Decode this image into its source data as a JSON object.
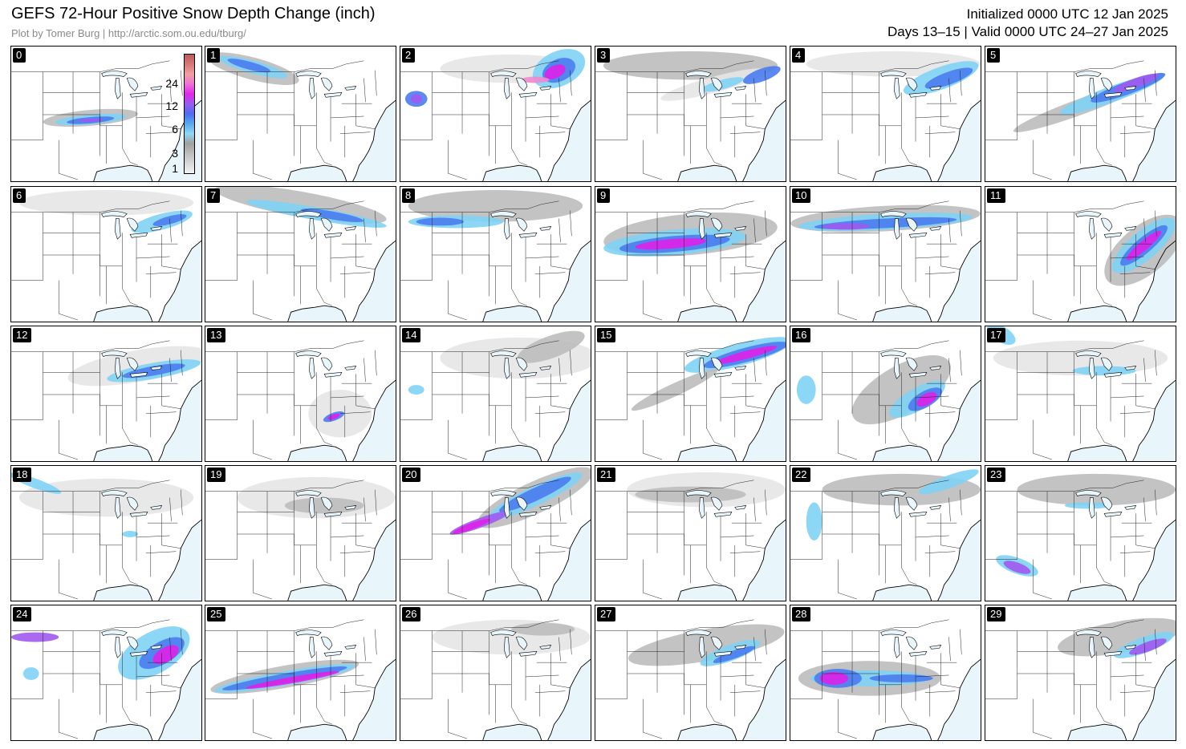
{
  "header": {
    "title": "GEFS 72-Hour Positive Snow Depth Change (inch)",
    "credit": "Plot by Tomer Burg | http://arctic.som.ou.edu/tburg/",
    "initialized": "Initialized 0000 UTC 12 Jan 2025",
    "valid": "Days 13–15 | Valid 0000 UTC 24–27 Jan 2025"
  },
  "legend": {
    "ticks": [
      "24",
      "12",
      "6",
      "3",
      "1"
    ],
    "colors": [
      "#f4f4f4",
      "#d8d8d8",
      "#bdbdbd",
      "#a0a0a0",
      "#8fd8f5",
      "#5aa8ee",
      "#4a6ef0",
      "#9a5cf0",
      "#e028e8",
      "#f070d8",
      "#f0a0a0",
      "#d87878",
      "#b85c5c"
    ]
  },
  "colors": {
    "ocean": "#e8f6fc",
    "land": "#ffffff",
    "border": "#000000",
    "lightgray": "#e6e6e6",
    "midgray": "#bcbcbc",
    "darkgray": "#9a9a9a",
    "lightblue": "#7fd2f5",
    "blue": "#4a7cf0",
    "purple": "#a05af0",
    "magenta": "#e020e8",
    "pink": "#f08ad0"
  },
  "members": [
    {
      "label": "0"
    },
    {
      "label": "1"
    },
    {
      "label": "2"
    },
    {
      "label": "3"
    },
    {
      "label": "4"
    },
    {
      "label": "5"
    },
    {
      "label": "6"
    },
    {
      "label": "7"
    },
    {
      "label": "8"
    },
    {
      "label": "9"
    },
    {
      "label": "10"
    },
    {
      "label": "11"
    },
    {
      "label": "12"
    },
    {
      "label": "13"
    },
    {
      "label": "14"
    },
    {
      "label": "15"
    },
    {
      "label": "16"
    },
    {
      "label": "17"
    },
    {
      "label": "18"
    },
    {
      "label": "19"
    },
    {
      "label": "20"
    },
    {
      "label": "21"
    },
    {
      "label": "22"
    },
    {
      "label": "23"
    },
    {
      "label": "24"
    },
    {
      "label": "25"
    },
    {
      "label": "26"
    },
    {
      "label": "27"
    },
    {
      "label": "28"
    },
    {
      "label": "29"
    }
  ]
}
